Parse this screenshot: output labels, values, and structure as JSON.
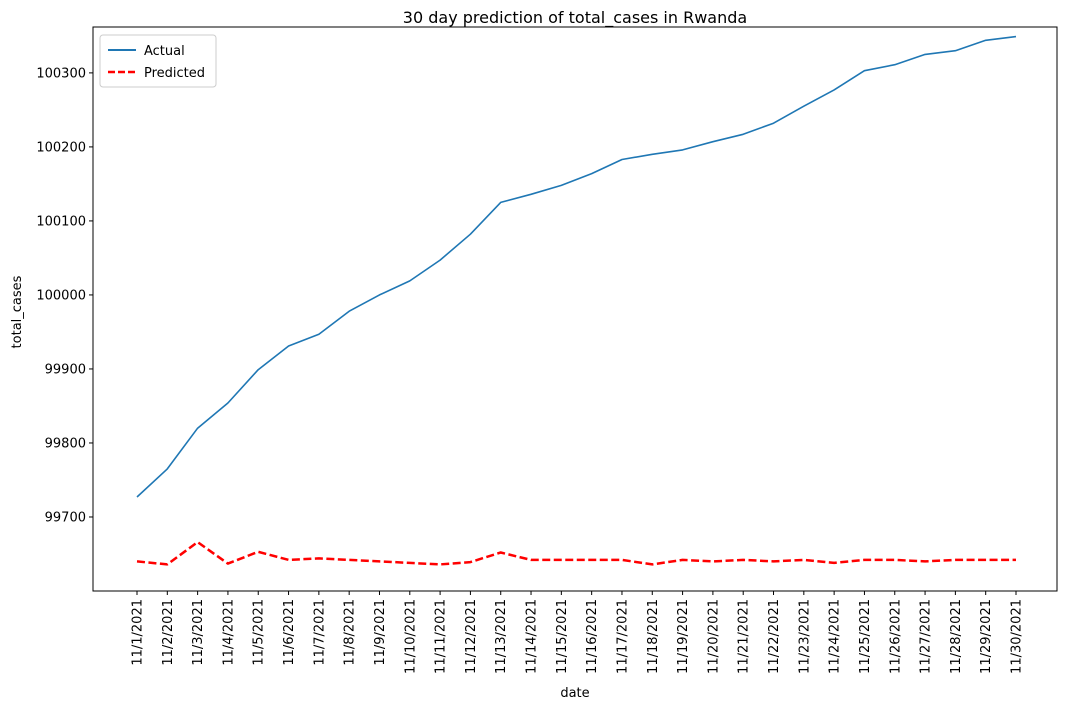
{
  "chart_data": {
    "type": "line",
    "title": "30 day prediction of total_cases in Rwanda",
    "xlabel": "date",
    "ylabel": "total_cases",
    "categories": [
      "11/1/2021",
      "11/2/2021",
      "11/3/2021",
      "11/4/2021",
      "11/5/2021",
      "11/6/2021",
      "11/7/2021",
      "11/8/2021",
      "11/9/2021",
      "11/10/2021",
      "11/11/2021",
      "11/12/2021",
      "11/13/2021",
      "11/14/2021",
      "11/15/2021",
      "11/16/2021",
      "11/17/2021",
      "11/18/2021",
      "11/19/2021",
      "11/20/2021",
      "11/21/2021",
      "11/22/2021",
      "11/23/2021",
      "11/24/2021",
      "11/25/2021",
      "11/26/2021",
      "11/27/2021",
      "11/28/2021",
      "11/29/2021",
      "11/30/2021"
    ],
    "series": [
      {
        "name": "Actual",
        "color": "#1f77b4",
        "style": "solid",
        "values": [
          99727,
          99765,
          99820,
          99854,
          99899,
          99931,
          99947,
          99978,
          100000,
          100019,
          100047,
          100082,
          100125,
          100136,
          100148,
          100164,
          100183,
          100190,
          100196,
          100207,
          100217,
          100232,
          100255,
          100277,
          100303,
          100311,
          100325,
          100330,
          100344,
          100349
        ]
      },
      {
        "name": "Predicted",
        "color": "#ff0000",
        "style": "dashed",
        "values": [
          99640,
          99636,
          99666,
          99637,
          99653,
          99642,
          99644,
          99642,
          99640,
          99638,
          99636,
          99639,
          99652,
          99642,
          99642,
          99642,
          99642,
          99636,
          99642,
          99640,
          99642,
          99640,
          99642,
          99638,
          99642,
          99642,
          99640,
          99642,
          99642,
          99642
        ]
      }
    ],
    "y_ticks": [
      99700,
      99800,
      99900,
      100000,
      100100,
      100200,
      100300
    ],
    "ylim": [
      99600,
      100362
    ],
    "grid": false,
    "legend_position": "top-left"
  }
}
